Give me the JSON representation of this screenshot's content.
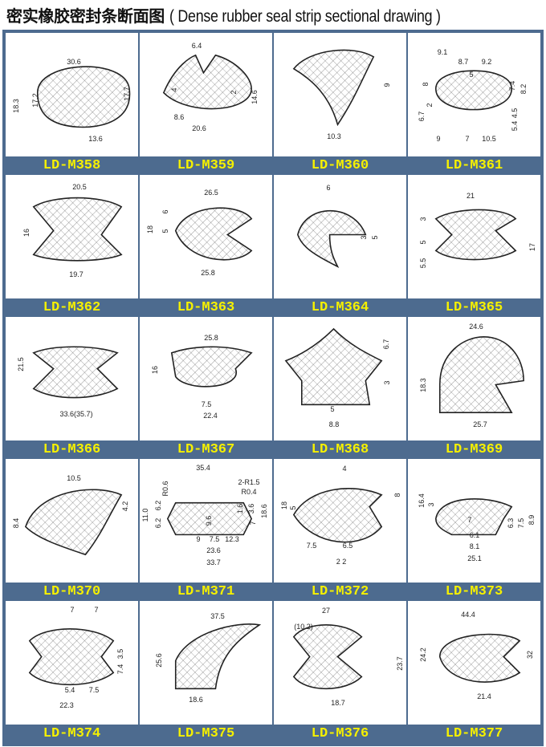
{
  "title": {
    "cn": "密实橡胶密封条断面图",
    "en": "( Dense rubber seal strip sectional drawing )"
  },
  "colors": {
    "label_bar": "#4d6b8f",
    "label_text": "#f5f000",
    "outline": "#222222"
  },
  "cells": [
    {
      "code": "LD-M358",
      "dims": [
        "30.6",
        "18.3",
        "17.2",
        "17.7",
        "13.6"
      ]
    },
    {
      "code": "LD-M359",
      "dims": [
        "6.4",
        "4",
        "2",
        "14.6",
        "8.6",
        "20.6"
      ]
    },
    {
      "code": "LD-M360",
      "dims": [
        "9",
        "10.3"
      ]
    },
    {
      "code": "LD-M361",
      "dims": [
        "9.1",
        "8.7",
        "9.2",
        "5",
        "8",
        "7.4",
        "8.2",
        "6.7",
        "2",
        "4.5",
        "5.4",
        "9",
        "7",
        "10.5"
      ]
    },
    {
      "code": "LD-M362",
      "dims": [
        "20.5",
        "16",
        "19.7"
      ]
    },
    {
      "code": "LD-M363",
      "dims": [
        "26.5",
        "6",
        "18",
        "5",
        "25.8"
      ]
    },
    {
      "code": "LD-M364",
      "dims": [
        "6",
        "3",
        "5"
      ]
    },
    {
      "code": "LD-M365",
      "dims": [
        "21",
        "3",
        "5",
        "17",
        "5.5"
      ]
    },
    {
      "code": "LD-M366",
      "dims": [
        "21.5",
        "33.6(35.7)"
      ]
    },
    {
      "code": "LD-M367",
      "dims": [
        "25.8",
        "16",
        "7.5",
        "22.4"
      ]
    },
    {
      "code": "LD-M368",
      "dims": [
        "6.7",
        "3",
        "5",
        "8.8"
      ]
    },
    {
      "code": "LD-M369",
      "dims": [
        "24.6",
        "18.3",
        "25.7"
      ]
    },
    {
      "code": "LD-M370",
      "dims": [
        "10.5",
        "8.4",
        "4.2"
      ]
    },
    {
      "code": "LD-M371",
      "dims": [
        "35.4",
        "R0.6",
        "2-R1.5",
        "R0.4",
        "11.0",
        "6.2",
        "6.2",
        "1.6",
        "3.6",
        "18.6",
        "7",
        "9.6",
        "9",
        "7.5",
        "12.3",
        "23.6",
        "33.7"
      ]
    },
    {
      "code": "LD-M372",
      "dims": [
        "4",
        "8",
        "18",
        "5",
        "7.5",
        "6.5",
        "2 2"
      ]
    },
    {
      "code": "LD-M373",
      "dims": [
        "16.4",
        "3",
        "6.3",
        "7.5",
        "8.9",
        "7",
        "6.1",
        "8.1",
        "25.1"
      ]
    },
    {
      "code": "LD-M374",
      "dims": [
        "7",
        "7",
        "3.5",
        "7.4",
        "5.4",
        "7.5",
        "22.3"
      ]
    },
    {
      "code": "LD-M375",
      "dims": [
        "37.5",
        "25.6",
        "18.6"
      ]
    },
    {
      "code": "LD-M376",
      "dims": [
        "27",
        "(10.2)",
        "23.7",
        "18.7"
      ]
    },
    {
      "code": "LD-M377",
      "dims": [
        "44.4",
        "24.2",
        "32",
        "21.4"
      ]
    }
  ]
}
